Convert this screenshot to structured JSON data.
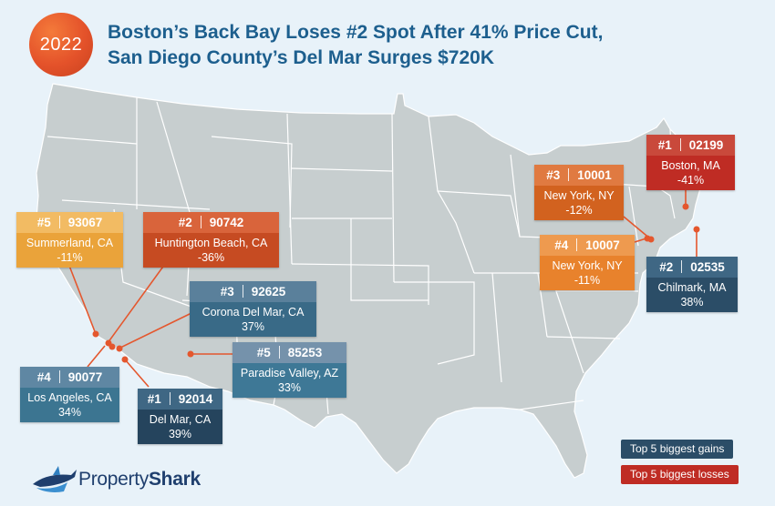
{
  "badge": {
    "year": "2022"
  },
  "title": {
    "line1": "Boston’s Back Bay Loses #2 Spot After 41% Price Cut,",
    "line2": "San Diego County’s Del Mar Surges $720K"
  },
  "colors": {
    "gain_dark": "#2b4d67",
    "gain_mid": "#35728f",
    "gain_light": "#5f86a2",
    "loss_red": "#c0382b",
    "loss_orange": "#d9642a",
    "loss_light": "#e88a36",
    "loss_yellow": "#ecaa3e",
    "map_fill": "#c7cecf",
    "background": "#e8f2f9",
    "title": "#1d5f8e"
  },
  "cards": [
    {
      "rank": "#1",
      "zip": "02199",
      "city": "Boston, MA",
      "change": "-41%",
      "type": "loss"
    },
    {
      "rank": "#3",
      "zip": "10001",
      "city": "New York, NY",
      "change": "-12%",
      "type": "loss"
    },
    {
      "rank": "#4",
      "zip": "10007",
      "city": "New York, NY",
      "change": "-11%",
      "type": "loss"
    },
    {
      "rank": "#2",
      "zip": "02535",
      "city": "Chilmark, MA",
      "change": "38%",
      "type": "gain"
    },
    {
      "rank": "#5",
      "zip": "93067",
      "city": "Summerland, CA",
      "change": "-11%",
      "type": "loss"
    },
    {
      "rank": "#2",
      "zip": "90742",
      "city": "Huntington Beach, CA",
      "change": "-36%",
      "type": "loss"
    },
    {
      "rank": "#3",
      "zip": "92625",
      "city": "Corona Del Mar, CA",
      "change": "37%",
      "type": "gain"
    },
    {
      "rank": "#5",
      "zip": "85253",
      "city": "Paradise Valley, AZ",
      "change": "33%",
      "type": "gain"
    },
    {
      "rank": "#4",
      "zip": "90077",
      "city": "Los Angeles, CA",
      "change": "34%",
      "type": "gain"
    },
    {
      "rank": "#1",
      "zip": "92014",
      "city": "Del Mar, CA",
      "change": "39%",
      "type": "gain"
    }
  ],
  "legend": {
    "gains": "Top 5 biggest gains",
    "losses": "Top 5 biggest losses"
  },
  "logo": {
    "part1": "Property",
    "part2": "Shark"
  }
}
